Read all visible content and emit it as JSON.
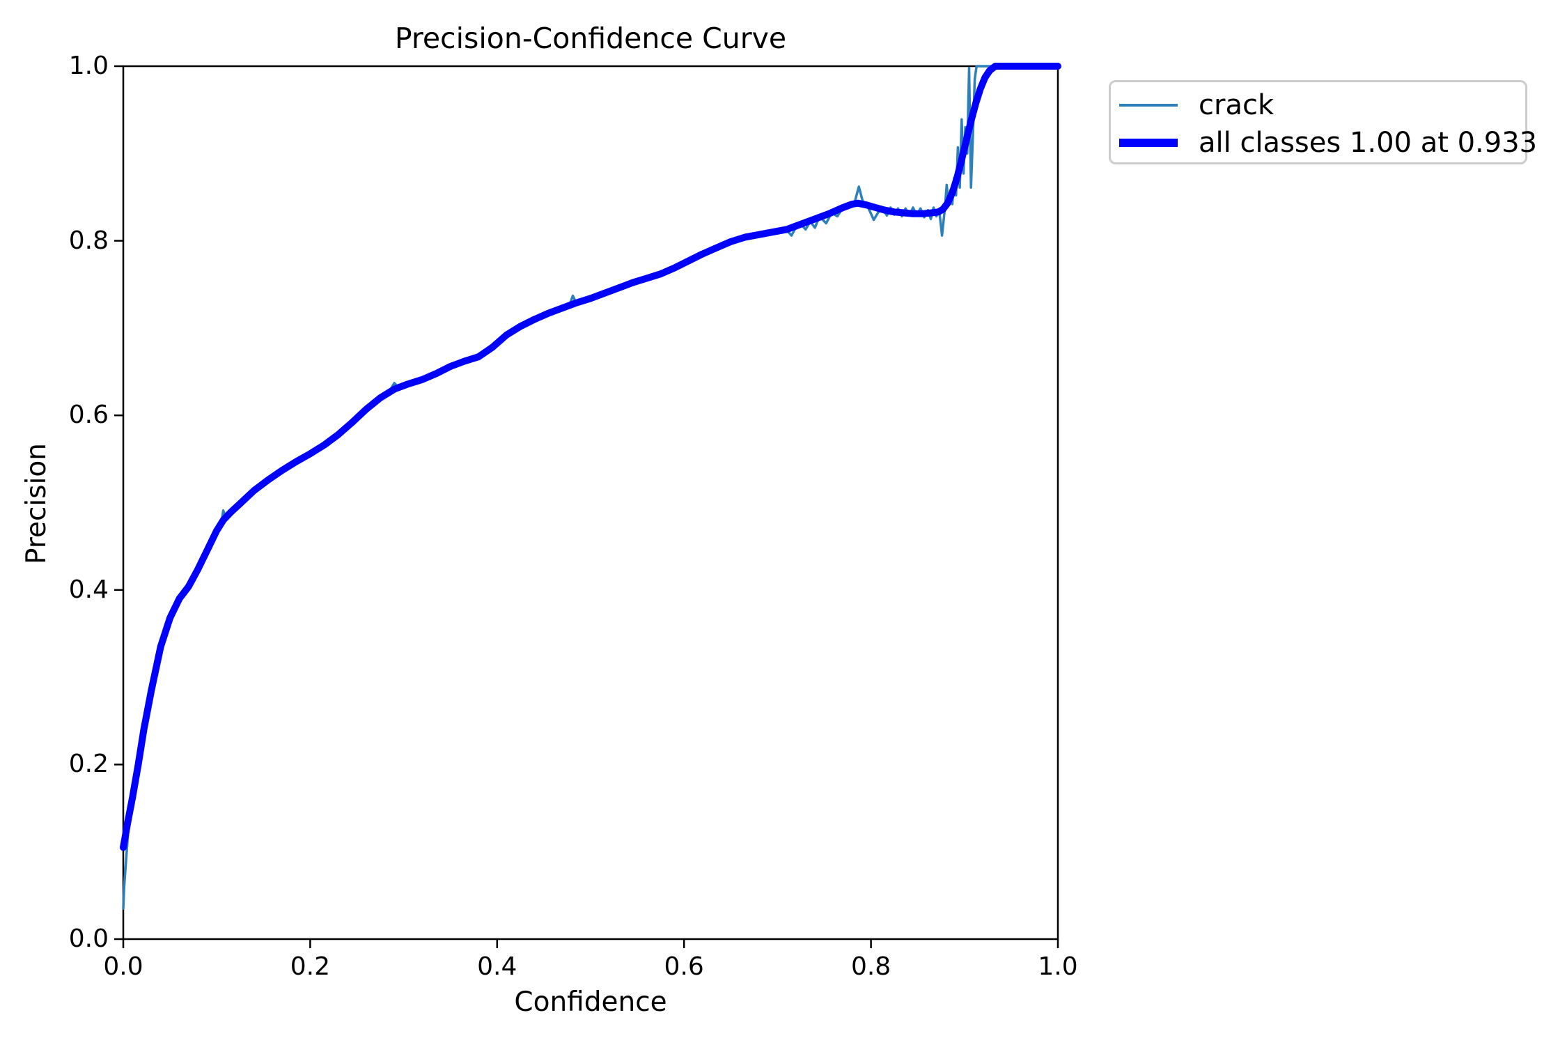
{
  "chart_data": {
    "type": "line",
    "title": "Precision-Confidence Curve",
    "xlabel": "Confidence",
    "ylabel": "Precision",
    "xlim": [
      0.0,
      1.0
    ],
    "ylim": [
      0.0,
      1.0
    ],
    "grid": false,
    "legend_position": "outside-upper-right",
    "axis_color": "#000000",
    "legend_border_color": "#cccccc",
    "x_tick_values": [
      0.0,
      0.2,
      0.4,
      0.6,
      0.8,
      1.0
    ],
    "x_tick_labels": [
      "0.0",
      "0.2",
      "0.4",
      "0.6",
      "0.8",
      "1.0"
    ],
    "y_tick_values": [
      0.0,
      0.2,
      0.4,
      0.6,
      0.8,
      1.0
    ],
    "y_tick_labels": [
      "0.0",
      "0.2",
      "0.4",
      "0.6",
      "0.8",
      "1.0"
    ],
    "series": [
      {
        "name": "crack",
        "color": "#2d80ba",
        "width": 3.5,
        "points": [
          [
            0.0,
            0.035
          ],
          [
            0.001,
            0.06
          ],
          [
            0.003,
            0.09
          ],
          [
            0.005,
            0.12
          ],
          [
            0.01,
            0.163
          ],
          [
            0.016,
            0.2
          ],
          [
            0.022,
            0.24
          ],
          [
            0.03,
            0.285
          ],
          [
            0.04,
            0.335
          ],
          [
            0.05,
            0.368
          ],
          [
            0.06,
            0.39
          ],
          [
            0.07,
            0.404
          ],
          [
            0.08,
            0.424
          ],
          [
            0.09,
            0.446
          ],
          [
            0.1,
            0.468
          ],
          [
            0.105,
            0.478
          ],
          [
            0.107,
            0.491
          ],
          [
            0.11,
            0.483
          ],
          [
            0.118,
            0.492
          ],
          [
            0.125,
            0.5
          ],
          [
            0.14,
            0.515
          ],
          [
            0.155,
            0.527
          ],
          [
            0.17,
            0.538
          ],
          [
            0.185,
            0.548
          ],
          [
            0.2,
            0.556
          ],
          [
            0.215,
            0.566
          ],
          [
            0.23,
            0.578
          ],
          [
            0.245,
            0.592
          ],
          [
            0.26,
            0.607
          ],
          [
            0.275,
            0.62
          ],
          [
            0.285,
            0.628
          ],
          [
            0.29,
            0.637
          ],
          [
            0.296,
            0.63
          ],
          [
            0.305,
            0.636
          ],
          [
            0.32,
            0.641
          ],
          [
            0.335,
            0.648
          ],
          [
            0.35,
            0.656
          ],
          [
            0.365,
            0.662
          ],
          [
            0.38,
            0.667
          ],
          [
            0.395,
            0.678
          ],
          [
            0.41,
            0.692
          ],
          [
            0.425,
            0.702
          ],
          [
            0.44,
            0.71
          ],
          [
            0.455,
            0.717
          ],
          [
            0.47,
            0.723
          ],
          [
            0.478,
            0.728
          ],
          [
            0.481,
            0.737
          ],
          [
            0.485,
            0.728
          ],
          [
            0.5,
            0.734
          ],
          [
            0.515,
            0.74
          ],
          [
            0.53,
            0.746
          ],
          [
            0.545,
            0.752
          ],
          [
            0.56,
            0.757
          ],
          [
            0.575,
            0.762
          ],
          [
            0.59,
            0.769
          ],
          [
            0.605,
            0.777
          ],
          [
            0.62,
            0.785
          ],
          [
            0.635,
            0.792
          ],
          [
            0.65,
            0.799
          ],
          [
            0.665,
            0.804
          ],
          [
            0.68,
            0.807
          ],
          [
            0.695,
            0.81
          ],
          [
            0.71,
            0.812
          ],
          [
            0.715,
            0.806
          ],
          [
            0.72,
            0.816
          ],
          [
            0.725,
            0.819
          ],
          [
            0.73,
            0.813
          ],
          [
            0.735,
            0.822
          ],
          [
            0.74,
            0.815
          ],
          [
            0.745,
            0.828
          ],
          [
            0.752,
            0.82
          ],
          [
            0.758,
            0.832
          ],
          [
            0.764,
            0.828
          ],
          [
            0.77,
            0.838
          ],
          [
            0.778,
            0.842
          ],
          [
            0.783,
            0.846
          ],
          [
            0.787,
            0.862
          ],
          [
            0.791,
            0.846
          ],
          [
            0.797,
            0.838
          ],
          [
            0.803,
            0.824
          ],
          [
            0.808,
            0.833
          ],
          [
            0.813,
            0.836
          ],
          [
            0.817,
            0.829
          ],
          [
            0.821,
            0.838
          ],
          [
            0.825,
            0.83
          ],
          [
            0.829,
            0.837
          ],
          [
            0.833,
            0.828
          ],
          [
            0.837,
            0.837
          ],
          [
            0.841,
            0.829
          ],
          [
            0.845,
            0.838
          ],
          [
            0.849,
            0.829
          ],
          [
            0.853,
            0.837
          ],
          [
            0.857,
            0.827
          ],
          [
            0.861,
            0.835
          ],
          [
            0.864,
            0.825
          ],
          [
            0.867,
            0.838
          ],
          [
            0.87,
            0.828
          ],
          [
            0.873,
            0.835
          ],
          [
            0.876,
            0.806
          ],
          [
            0.879,
            0.836
          ],
          [
            0.881,
            0.864
          ],
          [
            0.883,
            0.844
          ],
          [
            0.885,
            0.858
          ],
          [
            0.887,
            0.842
          ],
          [
            0.889,
            0.872
          ],
          [
            0.891,
            0.852
          ],
          [
            0.893,
            0.907
          ],
          [
            0.895,
            0.861
          ],
          [
            0.897,
            0.939
          ],
          [
            0.899,
            0.877
          ],
          [
            0.901,
            0.93
          ],
          [
            0.903,
            0.9
          ],
          [
            0.905,
            0.998
          ],
          [
            0.907,
            0.861
          ],
          [
            0.909,
            0.92
          ],
          [
            0.911,
            0.985
          ],
          [
            0.913,
            1.0
          ],
          [
            1.0,
            1.0
          ]
        ]
      },
      {
        "name": "all classes 1.00 at 0.933",
        "color": "#0000ff",
        "width": 10,
        "points": [
          [
            0.0,
            0.105
          ],
          [
            0.005,
            0.135
          ],
          [
            0.01,
            0.163
          ],
          [
            0.016,
            0.2
          ],
          [
            0.022,
            0.24
          ],
          [
            0.03,
            0.285
          ],
          [
            0.04,
            0.335
          ],
          [
            0.05,
            0.368
          ],
          [
            0.06,
            0.39
          ],
          [
            0.07,
            0.404
          ],
          [
            0.08,
            0.424
          ],
          [
            0.09,
            0.446
          ],
          [
            0.1,
            0.468
          ],
          [
            0.107,
            0.48
          ],
          [
            0.115,
            0.489
          ],
          [
            0.125,
            0.499
          ],
          [
            0.14,
            0.514
          ],
          [
            0.155,
            0.526
          ],
          [
            0.17,
            0.537
          ],
          [
            0.185,
            0.547
          ],
          [
            0.2,
            0.556
          ],
          [
            0.215,
            0.566
          ],
          [
            0.23,
            0.578
          ],
          [
            0.245,
            0.592
          ],
          [
            0.26,
            0.607
          ],
          [
            0.275,
            0.62
          ],
          [
            0.29,
            0.63
          ],
          [
            0.305,
            0.636
          ],
          [
            0.32,
            0.641
          ],
          [
            0.335,
            0.648
          ],
          [
            0.35,
            0.656
          ],
          [
            0.365,
            0.662
          ],
          [
            0.38,
            0.667
          ],
          [
            0.395,
            0.678
          ],
          [
            0.41,
            0.692
          ],
          [
            0.425,
            0.702
          ],
          [
            0.44,
            0.71
          ],
          [
            0.455,
            0.717
          ],
          [
            0.47,
            0.723
          ],
          [
            0.485,
            0.729
          ],
          [
            0.5,
            0.734
          ],
          [
            0.515,
            0.74
          ],
          [
            0.53,
            0.746
          ],
          [
            0.545,
            0.752
          ],
          [
            0.56,
            0.757
          ],
          [
            0.575,
            0.762
          ],
          [
            0.59,
            0.769
          ],
          [
            0.605,
            0.777
          ],
          [
            0.62,
            0.785
          ],
          [
            0.635,
            0.792
          ],
          [
            0.65,
            0.799
          ],
          [
            0.665,
            0.804
          ],
          [
            0.68,
            0.807
          ],
          [
            0.695,
            0.81
          ],
          [
            0.71,
            0.813
          ],
          [
            0.725,
            0.819
          ],
          [
            0.74,
            0.825
          ],
          [
            0.755,
            0.831
          ],
          [
            0.77,
            0.838
          ],
          [
            0.78,
            0.842
          ],
          [
            0.786,
            0.843
          ],
          [
            0.795,
            0.841
          ],
          [
            0.805,
            0.838
          ],
          [
            0.815,
            0.835
          ],
          [
            0.825,
            0.833
          ],
          [
            0.835,
            0.832
          ],
          [
            0.845,
            0.831
          ],
          [
            0.855,
            0.831
          ],
          [
            0.865,
            0.832
          ],
          [
            0.872,
            0.833
          ],
          [
            0.877,
            0.836
          ],
          [
            0.882,
            0.843
          ],
          [
            0.887,
            0.855
          ],
          [
            0.892,
            0.872
          ],
          [
            0.897,
            0.893
          ],
          [
            0.902,
            0.915
          ],
          [
            0.907,
            0.937
          ],
          [
            0.912,
            0.957
          ],
          [
            0.917,
            0.974
          ],
          [
            0.922,
            0.987
          ],
          [
            0.927,
            0.995
          ],
          [
            0.933,
            1.0
          ],
          [
            1.0,
            1.0
          ]
        ]
      }
    ]
  }
}
